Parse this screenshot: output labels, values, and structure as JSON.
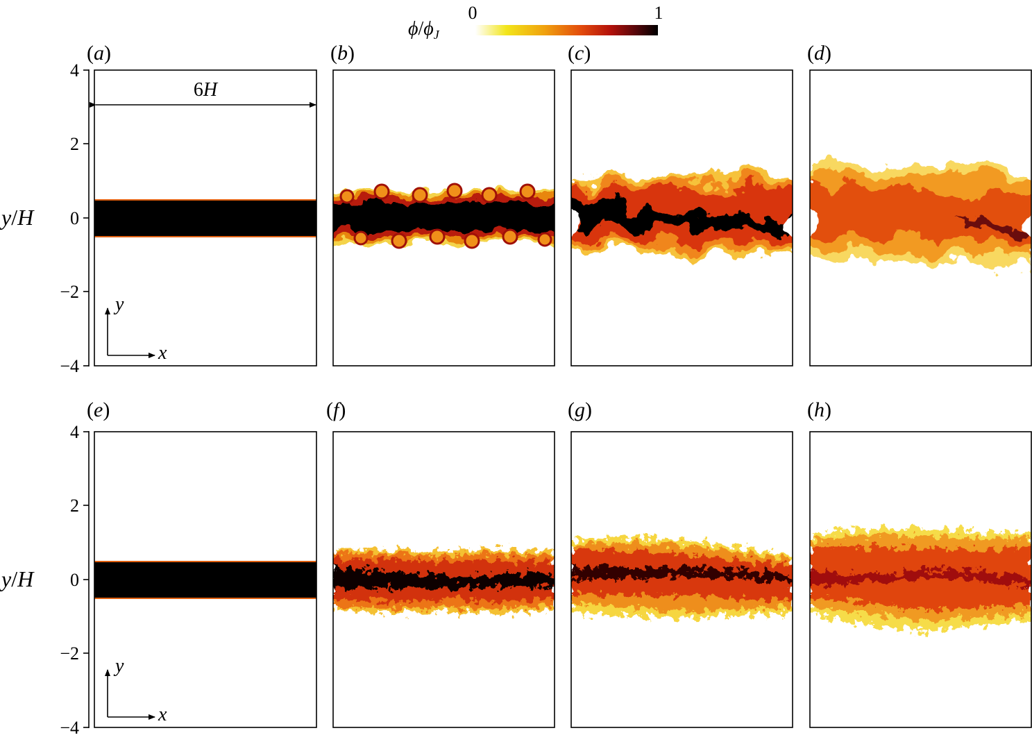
{
  "colorbar": {
    "label_phi": "ϕ",
    "label_sep": "/",
    "label_phiJ": "ϕ",
    "label_sub": "J",
    "min_label": "0",
    "max_label": "1",
    "colors": [
      "#ffffff",
      "#f2e51a",
      "#f0a10e",
      "#e24a0c",
      "#b3110a",
      "#55060a",
      "#000000"
    ]
  },
  "axis": {
    "ylabel_var": "y",
    "ylabel_sep": "/",
    "ylabel_unit": "H",
    "ticks": [
      4,
      2,
      0,
      -2,
      -4
    ],
    "tick_labels": [
      "4",
      "2",
      "0",
      "−2",
      "−4"
    ]
  },
  "annotations": {
    "width_var": "6",
    "width_unit": "H",
    "axis_x": "x",
    "axis_y": "y"
  },
  "panels": [
    {
      "label": "a",
      "state": "initial"
    },
    {
      "label": "b",
      "state": "rolled"
    },
    {
      "label": "c",
      "state": "transitional"
    },
    {
      "label": "d",
      "state": "mixed"
    },
    {
      "label": "e",
      "state": "initial"
    },
    {
      "label": "f",
      "state": "fine-turbulent"
    },
    {
      "label": "g",
      "state": "fine-turbulent-wide"
    },
    {
      "label": "h",
      "state": "fine-turbulent-widest"
    }
  ],
  "chart_data": {
    "type": "heatmap",
    "title": "",
    "xlabel": "",
    "ylabel": "y/H",
    "ylim": [
      -4,
      4
    ],
    "yticks": [
      4,
      2,
      0,
      -2,
      -4
    ],
    "colorbar_range": [
      0,
      1
    ],
    "colorbar_label": "ϕ/ϕJ",
    "domain_width": "6H",
    "panels": [
      {
        "label": "a",
        "jet_half_width_y": 0.5
      },
      {
        "label": "b",
        "jet_half_width_y": 0.65
      },
      {
        "label": "c",
        "jet_half_width_y": 1.1
      },
      {
        "label": "d",
        "jet_half_width_y": 1.4
      },
      {
        "label": "e",
        "jet_half_width_y": 0.5
      },
      {
        "label": "f",
        "jet_half_width_y": 0.9
      },
      {
        "label": "g",
        "jet_half_width_y": 1.1
      },
      {
        "label": "h",
        "jet_half_width_y": 1.4
      }
    ]
  }
}
